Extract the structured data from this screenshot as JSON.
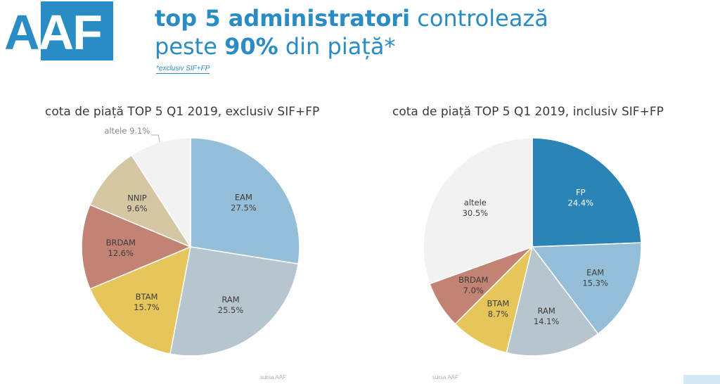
{
  "logo": {
    "text_a": "A",
    "text_af": "AF"
  },
  "headline": {
    "line1_bold": "top 5 administratori",
    "line1_rest": " controlează",
    "line2_pre": "peste ",
    "line2_bold": "90%",
    "line2_rest": " din piață*"
  },
  "footnote": "*exclusiv SIF+FP",
  "colors": {
    "accent": "#2a8cc4",
    "EAM": "#95bfd9",
    "RAM": "#b7c5ce",
    "BTAM": "#e6c65a",
    "BRDAM": "#c28374",
    "NNIP": "#d5c6a4",
    "altele": "#f2f2f2",
    "FP": "#2a84b6"
  },
  "sources": [
    "sursa AAF",
    "sursa AAF"
  ],
  "chart_data": [
    {
      "type": "pie",
      "title": "cota de piață TOP 5 Q1 2019, exclusiv SIF+FP",
      "slices": [
        {
          "name": "EAM",
          "value": 27.5,
          "label": "27.5%",
          "color": "#95bfd9"
        },
        {
          "name": "RAM",
          "value": 25.5,
          "label": "25.5%",
          "color": "#b7c5ce"
        },
        {
          "name": "BTAM",
          "value": 15.7,
          "label": "15.7%",
          "color": "#e6c65a"
        },
        {
          "name": "BRDAM",
          "value": 12.6,
          "label": "12.6%",
          "color": "#c28374"
        },
        {
          "name": "NNIP",
          "value": 9.6,
          "label": "9.6%",
          "color": "#d5c6a4"
        },
        {
          "name": "altele",
          "value": 9.1,
          "label": "9.1%",
          "color": "#f2f2f2",
          "outside": true
        }
      ]
    },
    {
      "type": "pie",
      "title": "cota de piață TOP 5 Q1 2019, inclusiv SIF+FP",
      "slices": [
        {
          "name": "FP",
          "value": 24.4,
          "label": "24.4%",
          "color": "#2a84b6",
          "light_text": true
        },
        {
          "name": "EAM",
          "value": 15.3,
          "label": "15.3%",
          "color": "#95bfd9"
        },
        {
          "name": "RAM",
          "value": 14.1,
          "label": "14.1%",
          "color": "#b7c5ce"
        },
        {
          "name": "BTAM",
          "value": 8.7,
          "label": "8.7%",
          "color": "#e6c65a"
        },
        {
          "name": "BRDAM",
          "value": 7.0,
          "label": "7.0%",
          "color": "#c28374"
        },
        {
          "name": "altele",
          "value": 30.5,
          "label": "30.5%",
          "color": "#f2f2f2"
        }
      ]
    }
  ]
}
